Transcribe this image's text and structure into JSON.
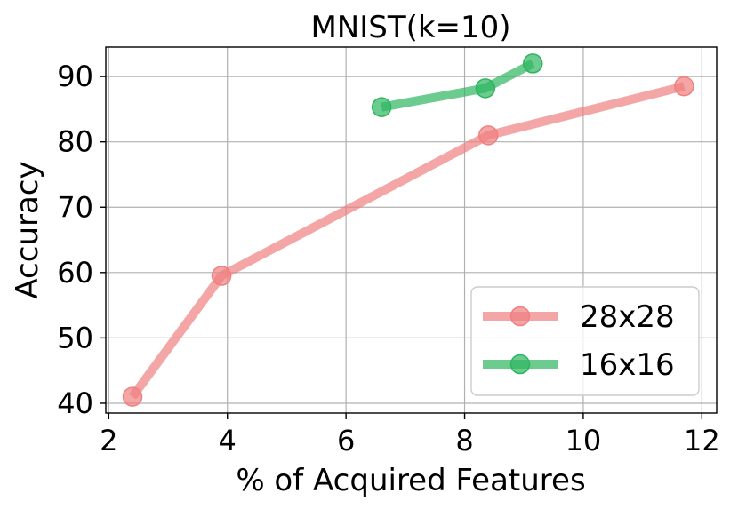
{
  "chart_data": {
    "type": "line",
    "title": "MNIST(k=10)",
    "xlabel": "% of Acquired Features",
    "ylabel": "Accuracy",
    "xlim": [
      1.95,
      12.25
    ],
    "ylim": [
      38.5,
      94.5
    ],
    "xticks": [
      2,
      4,
      6,
      8,
      10,
      12
    ],
    "yticks": [
      40,
      50,
      60,
      70,
      80,
      90
    ],
    "grid": true,
    "legend_position": "lower-right",
    "series": [
      {
        "name": "28x28",
        "color": "#f08080",
        "x": [
          2.4,
          3.9,
          8.4,
          11.7
        ],
        "y": [
          41.0,
          59.5,
          81.0,
          88.5
        ]
      },
      {
        "name": "16x16",
        "color": "#2eb560",
        "x": [
          6.6,
          8.35,
          9.15
        ],
        "y": [
          85.3,
          88.2,
          92.0
        ]
      }
    ]
  }
}
